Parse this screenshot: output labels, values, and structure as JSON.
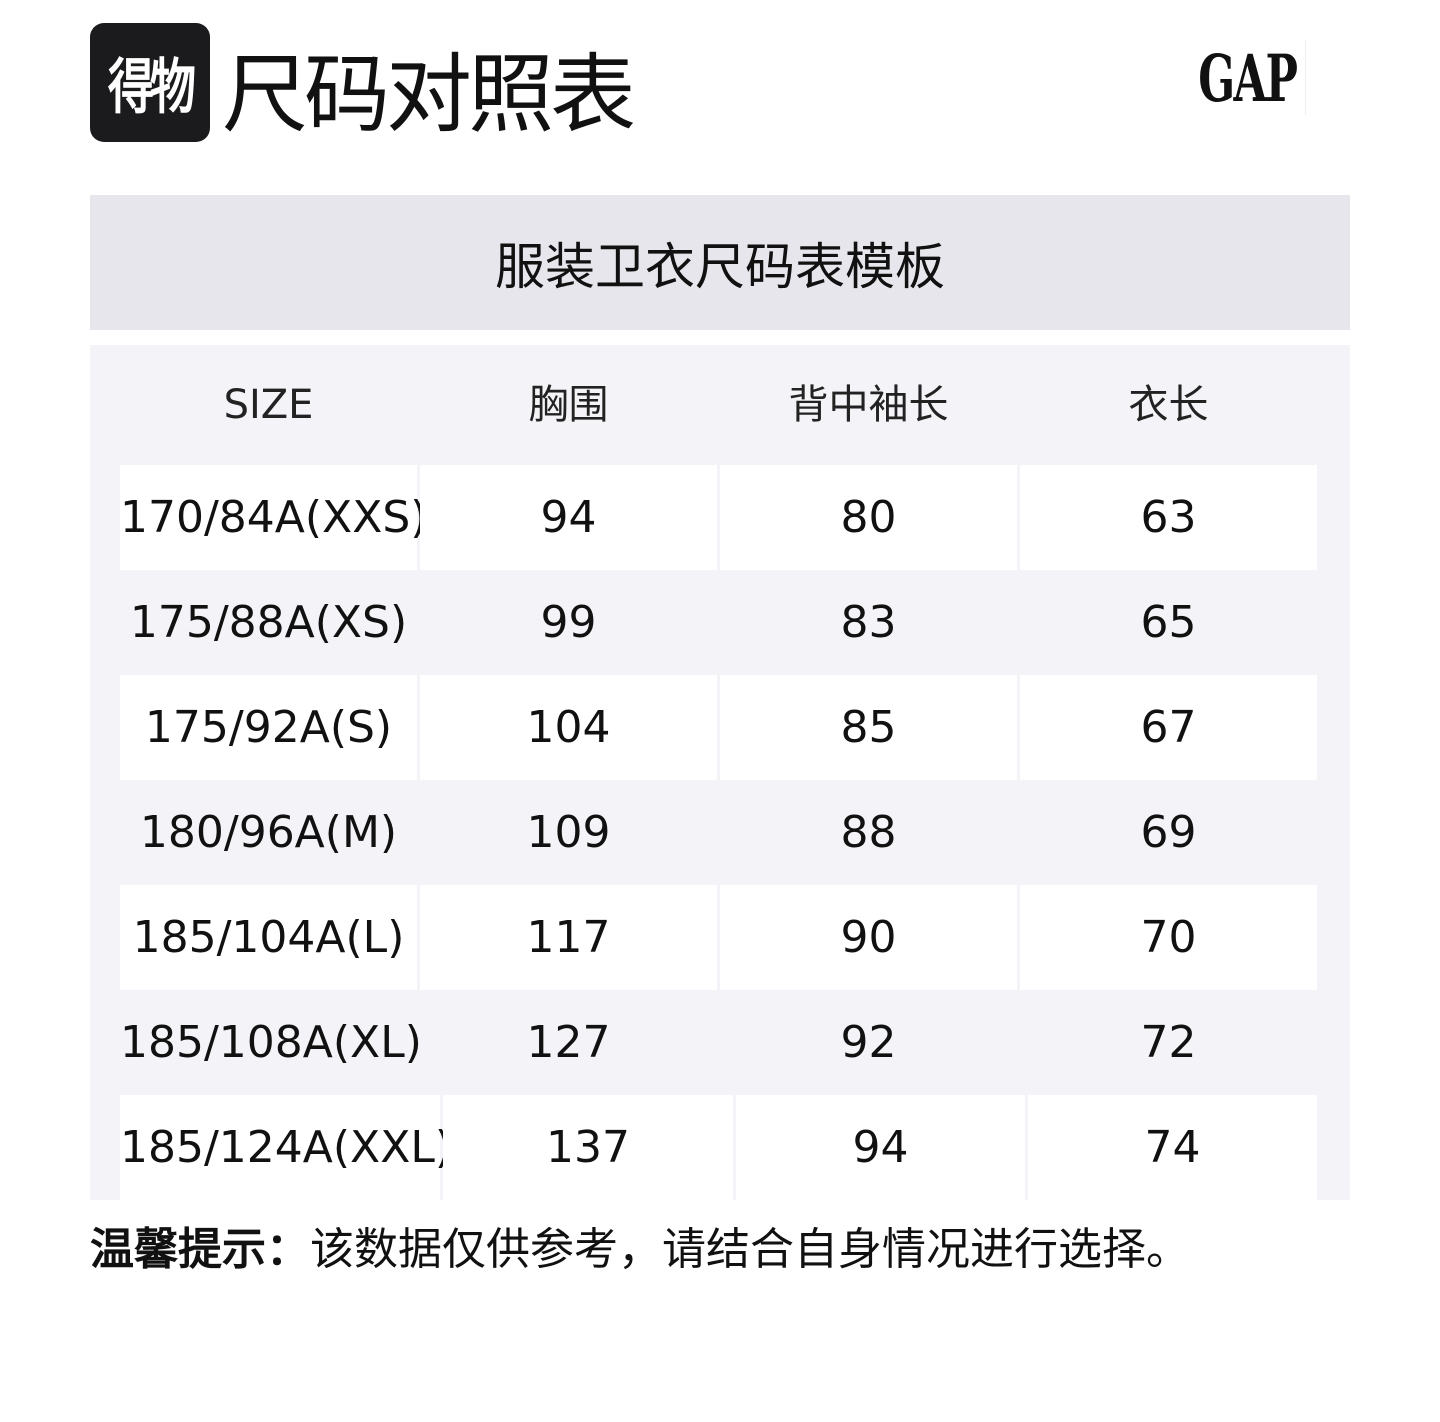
{
  "header": {
    "logo_text": "得物",
    "title": "尺码对照表",
    "brand_logo": "GAP"
  },
  "banner": {
    "title": "服装卫衣尺码表模板"
  },
  "table": {
    "columns": [
      "SIZE",
      "胸围",
      "背中袖长",
      "衣长"
    ],
    "rows": [
      [
        "170/84A(XXS)",
        "94",
        "80",
        "63"
      ],
      [
        "175/88A(XS)",
        "99",
        "83",
        "65"
      ],
      [
        "175/92A(S)",
        "104",
        "85",
        "67"
      ],
      [
        "180/96A(M)",
        "109",
        "88",
        "69"
      ],
      [
        "185/104A(L)",
        "117",
        "90",
        "70"
      ],
      [
        "185/108A(XL)",
        "127",
        "92",
        "72"
      ],
      [
        "185/124A(XXL)",
        "137",
        "94",
        "74"
      ]
    ]
  },
  "footer": {
    "note_label": "温馨提示：",
    "note_text": "该数据仅供参考，请结合自身情况进行选择。"
  },
  "colors": {
    "banner_bg": "#e6e6ec",
    "panel_bg": "#f3f3f8",
    "logo_bg": "#1b1b1d"
  }
}
